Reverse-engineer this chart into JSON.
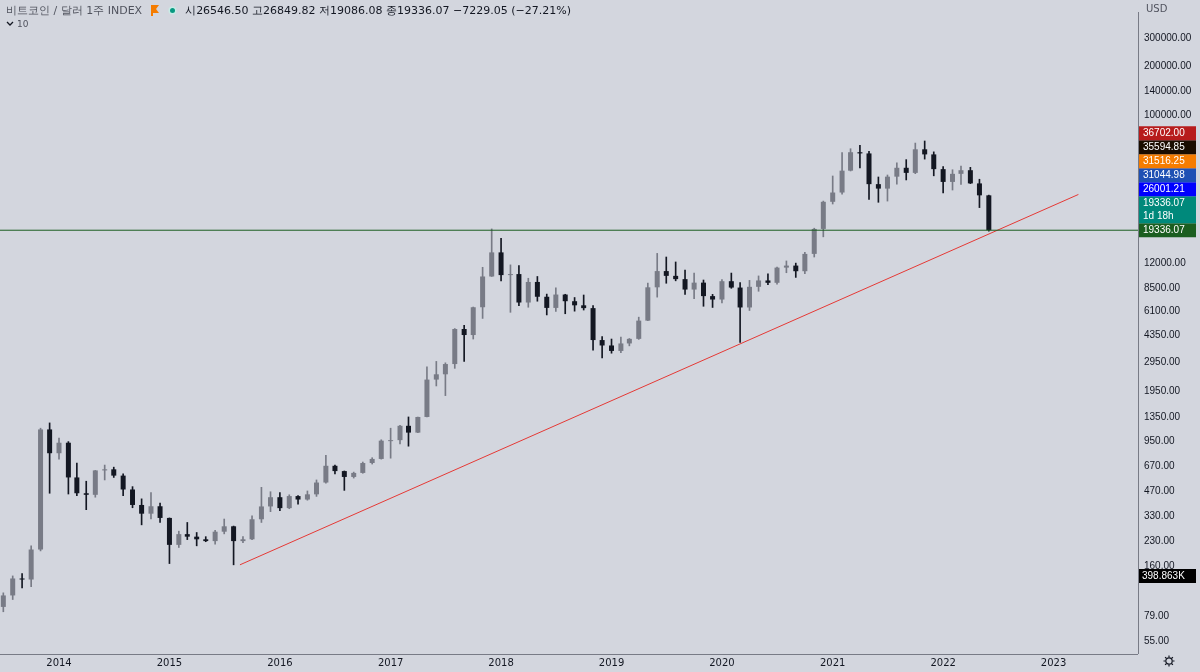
{
  "chart_data": {
    "type": "candlestick",
    "title": "비트코인 / 달러  1주  INDEX",
    "subtitle": "시26546.50 고26849.82 저19086.08 종19336.07 −7229.05 (−27.21%)",
    "ylabel": "USD",
    "log": "y",
    "legend": false,
    "xlim": [
      "2013-06-20",
      "2023-10-07"
    ],
    "xticks": [
      "2014",
      "2015",
      "2016",
      "2017",
      "2018",
      "2019",
      "2020",
      "2021",
      "2022",
      "2023"
    ],
    "ylim": [
      46,
      434000
    ],
    "yticks": [
      {
        "value": 55,
        "label": "55.00"
      },
      {
        "value": 79,
        "label": "79.00"
      },
      {
        "value": 160,
        "label": "160.00"
      },
      {
        "value": 230,
        "label": "230.00"
      },
      {
        "value": 330,
        "label": "330.00"
      },
      {
        "value": 470,
        "label": "470.00"
      },
      {
        "value": 670,
        "label": "670.00"
      },
      {
        "value": 950,
        "label": "950.00"
      },
      {
        "value": 1350,
        "label": "1350.00"
      },
      {
        "value": 1950,
        "label": "1950.00"
      },
      {
        "value": 2950,
        "label": "2950.00"
      },
      {
        "value": 4350,
        "label": "4350.00"
      },
      {
        "value": 6100,
        "label": "6100.00"
      },
      {
        "value": 8500,
        "label": "8500.00"
      },
      {
        "value": 12000,
        "label": "12000.00"
      },
      {
        "value": 100000,
        "label": "100000.00"
      },
      {
        "value": 140000,
        "label": "140000.00"
      },
      {
        "value": 200000,
        "label": "200000.00"
      },
      {
        "value": 300000,
        "label": "300000.00"
      }
    ],
    "series": [
      {
        "colors": [
          "#787b86",
          "#787b86",
          "#131722",
          "#787b86",
          "#787b86",
          "#131722",
          "#787b86",
          "#131722",
          "#131722",
          "#131722",
          "#787b86",
          "#787b86",
          "#131722",
          "#131722",
          "#131722",
          "#131722",
          "#787b86",
          "#131722",
          "#131722",
          "#787b86",
          "#131722",
          "#131722",
          "#131722",
          "#787b86",
          "#787b86",
          "#131722",
          "#787b86",
          "#787b86",
          "#787b86",
          "#787b86",
          "#131722",
          "#787b86",
          "#131722",
          "#787b86",
          "#787b86",
          "#787b86",
          "#131722",
          "#131722",
          "#787b86",
          "#787b86",
          "#787b86",
          "#787b86",
          "#787b86",
          "#787b86",
          "#131722",
          "#787b86",
          "#787b86",
          "#787b86",
          "#787b86",
          "#787b86",
          "#131722",
          "#787b86",
          "#787b86",
          "#787b86",
          "#131722",
          "#787b86",
          "#131722",
          "#787b86",
          "#131722",
          "#131722",
          "#787b86",
          "#131722",
          "#131722",
          "#131722",
          "#131722",
          "#131722",
          "#131722",
          "#787b86",
          "#787b86",
          "#787b86",
          "#787b86",
          "#787b86",
          "#131722",
          "#131722",
          "#131722",
          "#787b86",
          "#131722",
          "#131722",
          "#787b86",
          "#131722",
          "#131722",
          "#787b86",
          "#787b86",
          "#131722",
          "#787b86",
          "#787b86",
          "#131722",
          "#787b86",
          "#787b86",
          "#787b86",
          "#787b86",
          "#787b86",
          "#787b86",
          "#131722",
          "#131722",
          "#131722",
          "#787b86",
          "#787b86",
          "#131722",
          "#787b86",
          "#131722",
          "#131722",
          "#131722",
          "#787b86",
          "#787b86",
          "#131722",
          "#131722",
          "#131722"
        ],
        "x": [
          "2013-07",
          "2013-08",
          "2013-09",
          "2013-10",
          "2013-11",
          "2013-12",
          "2014-01",
          "2014-02",
          "2014-03",
          "2014-04",
          "2014-05",
          "2014-06",
          "2014-07",
          "2014-08",
          "2014-09",
          "2014-10",
          "2014-11",
          "2014-12",
          "2015-01",
          "2015-02",
          "2015-03",
          "2015-04",
          "2015-05",
          "2015-06",
          "2015-07",
          "2015-08",
          "2015-09",
          "2015-10",
          "2015-11",
          "2015-12",
          "2016-01",
          "2016-02",
          "2016-03",
          "2016-04",
          "2016-05",
          "2016-06",
          "2016-07",
          "2016-08",
          "2016-09",
          "2016-10",
          "2016-11",
          "2016-12",
          "2017-01",
          "2017-02",
          "2017-03",
          "2017-04",
          "2017-05",
          "2017-06",
          "2017-07",
          "2017-08",
          "2017-09",
          "2017-10",
          "2017-11",
          "2017-12",
          "2018-01",
          "2018-02",
          "2018-03",
          "2018-04",
          "2018-05",
          "2018-06",
          "2018-07",
          "2018-08",
          "2018-09",
          "2018-10",
          "2018-11",
          "2018-12",
          "2019-01",
          "2019-02",
          "2019-03",
          "2019-04",
          "2019-05",
          "2019-06",
          "2019-07",
          "2019-08",
          "2019-09",
          "2019-10",
          "2019-11",
          "2019-12",
          "2020-01",
          "2020-02",
          "2020-03",
          "2020-04",
          "2020-05",
          "2020-06",
          "2020-07",
          "2020-08",
          "2020-09",
          "2020-10",
          "2020-11",
          "2020-12",
          "2021-01",
          "2021-02",
          "2021-03",
          "2021-04",
          "2021-05",
          "2021-06",
          "2021-07",
          "2021-08",
          "2021-09",
          "2021-10",
          "2021-11",
          "2021-12",
          "2022-01",
          "2022-02",
          "2022-03",
          "2022-04",
          "2022-05",
          "2022-06"
        ],
        "ohlc": [
          [
            90,
            110,
            84,
            106
          ],
          [
            106,
            140,
            100,
            135
          ],
          [
            135,
            145,
            118,
            133
          ],
          [
            133,
            215,
            120,
            204
          ],
          [
            204,
            1150,
            200,
            1130
          ],
          [
            1130,
            1240,
            455,
            805
          ],
          [
            805,
            1000,
            740,
            935
          ],
          [
            935,
            950,
            450,
            570
          ],
          [
            570,
            700,
            440,
            455
          ],
          [
            455,
            540,
            360,
            445
          ],
          [
            445,
            630,
            430,
            630
          ],
          [
            630,
            680,
            550,
            640
          ],
          [
            640,
            660,
            570,
            585
          ],
          [
            585,
            600,
            440,
            480
          ],
          [
            480,
            500,
            370,
            385
          ],
          [
            385,
            420,
            290,
            340
          ],
          [
            340,
            460,
            315,
            378
          ],
          [
            378,
            395,
            300,
            320
          ],
          [
            320,
            320,
            167,
            218
          ],
          [
            218,
            265,
            210,
            254
          ],
          [
            254,
            300,
            235,
            245
          ],
          [
            245,
            260,
            215,
            236
          ],
          [
            236,
            245,
            228,
            230
          ],
          [
            230,
            268,
            220,
            263
          ],
          [
            263,
            315,
            255,
            284
          ],
          [
            284,
            285,
            164,
            230
          ],
          [
            230,
            245,
            225,
            236
          ],
          [
            236,
            330,
            235,
            314
          ],
          [
            314,
            495,
            300,
            377
          ],
          [
            377,
            465,
            350,
            430
          ],
          [
            430,
            460,
            355,
            368
          ],
          [
            368,
            445,
            365,
            437
          ],
          [
            437,
            440,
            390,
            416
          ],
          [
            416,
            470,
            412,
            448
          ],
          [
            448,
            550,
            435,
            530
          ],
          [
            530,
            780,
            525,
            673
          ],
          [
            673,
            680,
            600,
            624
          ],
          [
            624,
            625,
            474,
            574
          ],
          [
            574,
            615,
            565,
            608
          ],
          [
            608,
            710,
            605,
            700
          ],
          [
            700,
            755,
            690,
            742
          ],
          [
            742,
            975,
            740,
            963
          ],
          [
            963,
            1150,
            750,
            970
          ],
          [
            970,
            1200,
            920,
            1190
          ],
          [
            1190,
            1350,
            890,
            1080
          ],
          [
            1080,
            1350,
            1080,
            1350
          ],
          [
            1350,
            2760,
            1350,
            2300
          ],
          [
            2300,
            2980,
            2100,
            2480
          ],
          [
            2480,
            2920,
            1830,
            2870
          ],
          [
            2870,
            4760,
            2700,
            4730
          ],
          [
            4730,
            4980,
            2980,
            4340
          ],
          [
            4340,
            6470,
            4100,
            6450
          ],
          [
            6450,
            11400,
            5500,
            10000
          ],
          [
            10000,
            19700,
            10000,
            14100
          ],
          [
            14100,
            17200,
            9400,
            10200
          ],
          [
            10200,
            11800,
            6000,
            10350
          ],
          [
            10350,
            11700,
            6600,
            6900
          ],
          [
            6900,
            9750,
            6450,
            9250
          ],
          [
            9250,
            10000,
            7030,
            7490
          ],
          [
            7490,
            7780,
            5780,
            6390
          ],
          [
            6390,
            8500,
            6080,
            7730
          ],
          [
            7730,
            7760,
            5880,
            7030
          ],
          [
            7030,
            7410,
            6100,
            6630
          ],
          [
            6630,
            7680,
            6200,
            6370
          ],
          [
            6370,
            6600,
            3500,
            4040
          ],
          [
            4040,
            4240,
            3130,
            3740
          ],
          [
            3740,
            4100,
            3350,
            3460
          ],
          [
            3460,
            4210,
            3370,
            3850
          ],
          [
            3850,
            4130,
            3720,
            4110
          ],
          [
            4110,
            5600,
            4080,
            5330
          ],
          [
            5330,
            9100,
            5330,
            8570
          ],
          [
            8570,
            13900,
            7450,
            10800
          ],
          [
            10800,
            13200,
            9080,
            10090
          ],
          [
            10090,
            12300,
            9400,
            9630
          ],
          [
            9630,
            10950,
            7750,
            8300
          ],
          [
            8300,
            10500,
            7300,
            9160
          ],
          [
            9160,
            9510,
            6540,
            7560
          ],
          [
            7560,
            7750,
            6430,
            7200
          ],
          [
            7200,
            9570,
            6860,
            9350
          ],
          [
            9350,
            10500,
            8450,
            8540
          ],
          [
            8540,
            9180,
            3900,
            6430
          ],
          [
            6430,
            9460,
            6160,
            8630
          ],
          [
            8630,
            10080,
            8100,
            9450
          ],
          [
            9450,
            10400,
            8900,
            9140
          ],
          [
            9140,
            11450,
            8970,
            11350
          ],
          [
            11350,
            12480,
            10550,
            11680
          ],
          [
            11680,
            12100,
            9870,
            10780
          ],
          [
            10780,
            14100,
            10400,
            13800
          ],
          [
            13800,
            19900,
            13200,
            19700
          ],
          [
            19700,
            29300,
            17600,
            29000
          ],
          [
            29000,
            41900,
            28100,
            33100
          ],
          [
            33100,
            58400,
            32300,
            45200
          ],
          [
            45200,
            61800,
            45000,
            58800
          ],
          [
            58800,
            64900,
            47000,
            57800
          ],
          [
            57800,
            59600,
            30000,
            37300
          ],
          [
            37300,
            41300,
            28800,
            35000
          ],
          [
            35000,
            42500,
            29300,
            41500
          ],
          [
            41500,
            50500,
            37300,
            47100
          ],
          [
            47100,
            52900,
            39600,
            43800
          ],
          [
            43800,
            67000,
            43300,
            61300
          ],
          [
            61300,
            69000,
            53300,
            57000
          ],
          [
            57000,
            59100,
            42000,
            46200
          ],
          [
            46200,
            47900,
            32900,
            38500
          ],
          [
            38500,
            45800,
            34300,
            43200
          ],
          [
            43200,
            48200,
            37200,
            45500
          ],
          [
            45500,
            47400,
            37600,
            37700
          ],
          [
            37700,
            40000,
            26700,
            31800
          ],
          [
            31800,
            31900,
            19086.08,
            19336.07
          ]
        ]
      },
      {
        "type": "line",
        "color": "#e53935",
        "x": [
          "2015-08-22",
          "2023-03-24"
        ],
        "values": [
          164,
          32200
        ]
      }
    ],
    "ref_lines": [
      {
        "axis": "y",
        "value": 19336.07,
        "label": "19336.07",
        "color": "#1b5e20"
      }
    ],
    "annotations": [
      "36702.00",
      "35594.85",
      "31516.25",
      "31044.98",
      "26001.21",
      "19336.07\n1d 18h",
      "10",
      "398.863K"
    ]
  }
}
